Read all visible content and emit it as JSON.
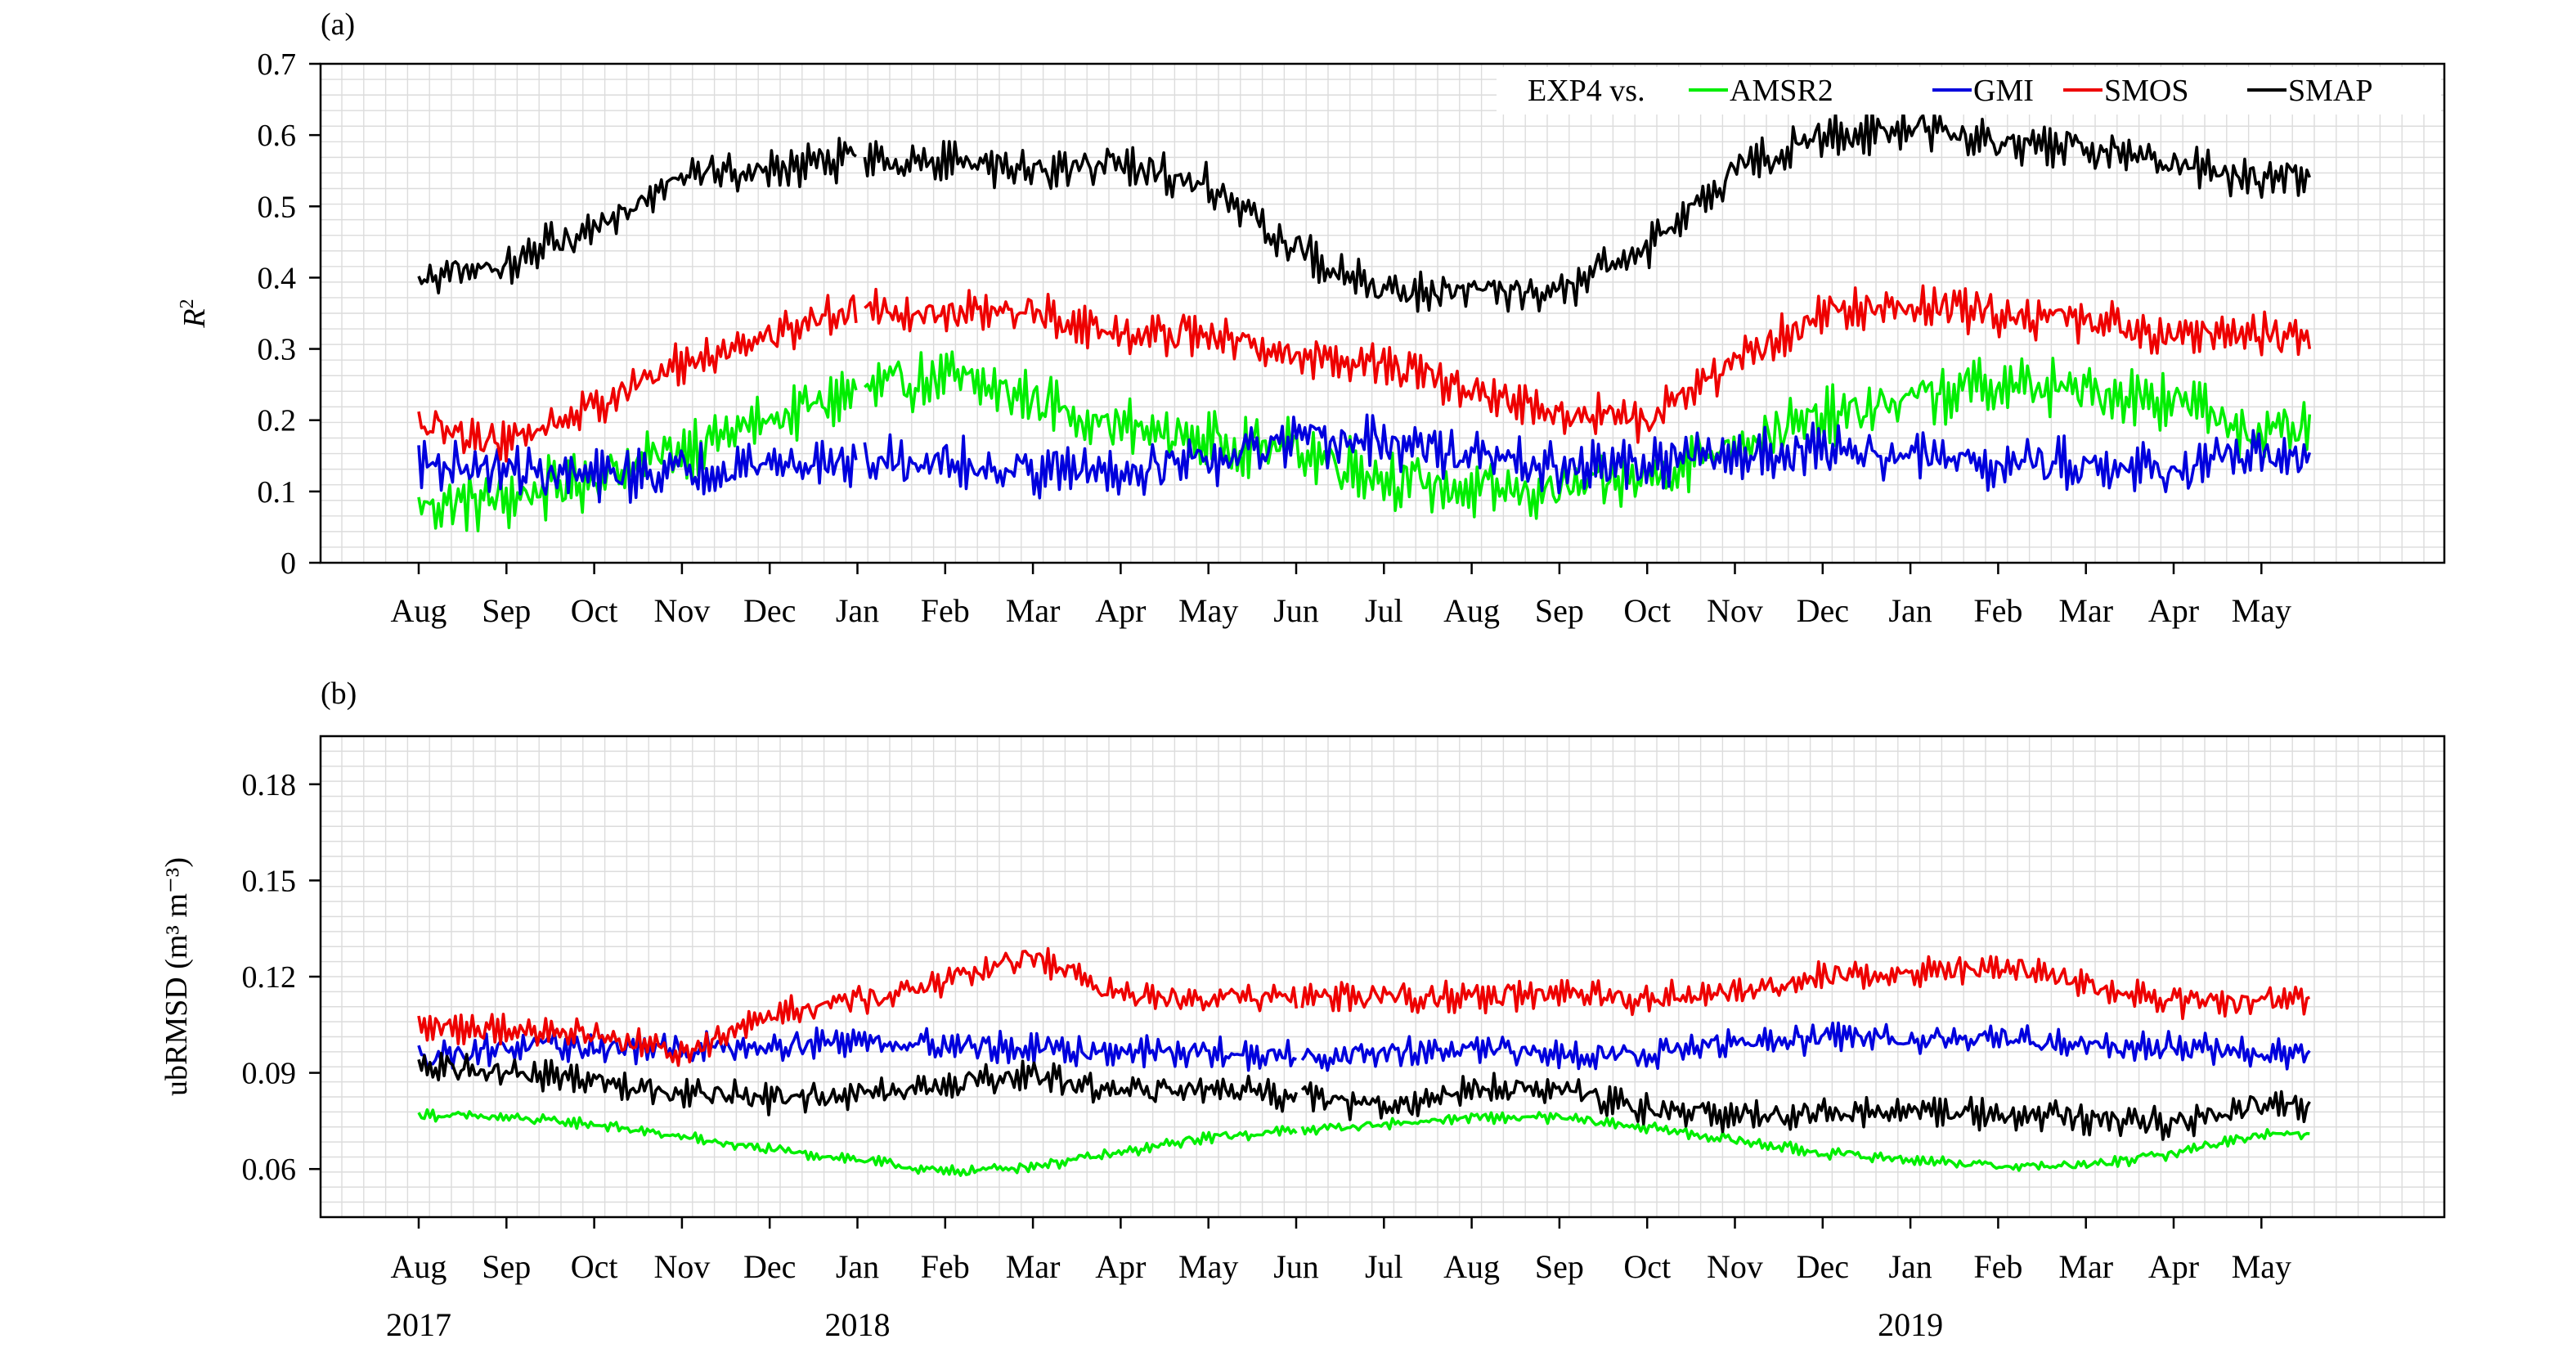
{
  "figure": {
    "x_months": [
      "Aug",
      "Sep",
      "Oct",
      "Nov",
      "Dec",
      "Jan",
      "Feb",
      "Mar",
      "Apr",
      "May",
      "Jun",
      "Jul",
      "Aug",
      "Sep",
      "Oct",
      "Nov",
      "Dec",
      "Jan",
      "Feb",
      "Mar",
      "Apr",
      "May"
    ],
    "year_labels": [
      {
        "label": "2017",
        "month_index": 0
      },
      {
        "label": "2018",
        "month_index": 5
      },
      {
        "label": "2019",
        "month_index": 17
      }
    ],
    "legend_prefix": "EXP4 vs.",
    "colors": {
      "AMSR2": "#00ee00",
      "GMI": "#0000dd",
      "SMOS": "#ee0000",
      "SMAP": "#000000",
      "grid": "#dcdcdc"
    }
  },
  "chart_data": [
    {
      "panel": "(a)",
      "type": "line",
      "ylabel": "R",
      "ylabel_sup": "2",
      "ylim": [
        0,
        0.7
      ],
      "yticks": [
        "0",
        "0.1",
        "0.2",
        "0.3",
        "0.4",
        "0.5",
        "0.6",
        "0.7"
      ],
      "ytick_values": [
        0,
        0.1,
        0.2,
        0.3,
        0.4,
        0.5,
        0.6,
        0.7
      ],
      "grid": true,
      "legend_position": "top-right",
      "gaps": [
        [
          5.0,
          5.08
        ],
        [
          7.72,
          7.75
        ],
        [
          9.72,
          9.74
        ],
        [
          14.45,
          14.47
        ]
      ],
      "series": [
        {
          "name": "AMSR2",
          "amplitude": 0.035,
          "x": [
            0,
            1,
            2,
            3,
            4,
            5,
            6,
            7,
            8,
            9,
            10,
            11,
            12,
            13,
            14,
            15,
            16,
            17,
            18,
            19,
            20,
            21
          ],
          "values": [
            0.08,
            0.09,
            0.12,
            0.16,
            0.2,
            0.24,
            0.26,
            0.23,
            0.19,
            0.17,
            0.16,
            0.12,
            0.1,
            0.1,
            0.12,
            0.17,
            0.2,
            0.23,
            0.25,
            0.24,
            0.23,
            0.18
          ]
        },
        {
          "name": "GMI",
          "amplitude": 0.03,
          "x": [
            0,
            1,
            2,
            3,
            4,
            5,
            6,
            7,
            8,
            9,
            10,
            11,
            12,
            13,
            14,
            15,
            16,
            17,
            18,
            19,
            20,
            21
          ],
          "values": [
            0.14,
            0.13,
            0.12,
            0.13,
            0.14,
            0.14,
            0.14,
            0.13,
            0.13,
            0.14,
            0.17,
            0.17,
            0.15,
            0.13,
            0.14,
            0.15,
            0.16,
            0.15,
            0.14,
            0.14,
            0.13,
            0.15
          ]
        },
        {
          "name": "SMOS",
          "amplitude": 0.025,
          "x": [
            0,
            1,
            2,
            3,
            4,
            5,
            6,
            7,
            8,
            9,
            10,
            11,
            12,
            13,
            14,
            15,
            16,
            17,
            18,
            19,
            20,
            21
          ],
          "values": [
            0.19,
            0.17,
            0.22,
            0.28,
            0.32,
            0.36,
            0.35,
            0.35,
            0.32,
            0.32,
            0.29,
            0.28,
            0.24,
            0.21,
            0.2,
            0.28,
            0.35,
            0.36,
            0.35,
            0.34,
            0.32,
            0.32
          ]
        },
        {
          "name": "SMAP",
          "amplitude": 0.025,
          "x": [
            0,
            1,
            2,
            3,
            4,
            5,
            6,
            7,
            8,
            9,
            10,
            11,
            12,
            13,
            14,
            15,
            16,
            17,
            18,
            19,
            20,
            21
          ],
          "values": [
            0.39,
            0.42,
            0.47,
            0.55,
            0.55,
            0.57,
            0.56,
            0.55,
            0.56,
            0.53,
            0.44,
            0.38,
            0.38,
            0.38,
            0.44,
            0.55,
            0.6,
            0.61,
            0.59,
            0.58,
            0.56,
            0.54
          ]
        }
      ]
    },
    {
      "panel": "(b)",
      "type": "line",
      "ylabel": "ubRMSD (m³ m⁻³)",
      "ylim": [
        0.045,
        0.195
      ],
      "yticks": [
        "0.06",
        "0.09",
        "0.12",
        "0.15",
        "0.18"
      ],
      "ytick_values": [
        0.06,
        0.09,
        0.12,
        0.15,
        0.18
      ],
      "grid": true,
      "gaps": [
        [
          7.72,
          7.75
        ],
        [
          10.02,
          10.05
        ],
        [
          14.45,
          14.47
        ]
      ],
      "series": [
        {
          "name": "AMSR2",
          "amplitude": 0.0015,
          "x": [
            0,
            1,
            2,
            3,
            4,
            5,
            6,
            7,
            8,
            9,
            10,
            11,
            12,
            13,
            14,
            15,
            16,
            17,
            18,
            19,
            20,
            21
          ],
          "values": [
            0.077,
            0.076,
            0.074,
            0.07,
            0.066,
            0.063,
            0.059,
            0.061,
            0.065,
            0.07,
            0.072,
            0.074,
            0.076,
            0.076,
            0.073,
            0.069,
            0.065,
            0.063,
            0.061,
            0.061,
            0.065,
            0.071
          ]
        },
        {
          "name": "GMI",
          "amplitude": 0.004,
          "x": [
            0,
            1,
            2,
            3,
            4,
            5,
            6,
            7,
            8,
            9,
            10,
            11,
            12,
            13,
            14,
            15,
            16,
            17,
            18,
            19,
            20,
            21
          ],
          "values": [
            0.095,
            0.098,
            0.098,
            0.097,
            0.099,
            0.1,
            0.099,
            0.097,
            0.097,
            0.096,
            0.095,
            0.096,
            0.097,
            0.096,
            0.096,
            0.099,
            0.101,
            0.101,
            0.101,
            0.099,
            0.098,
            0.096
          ]
        },
        {
          "name": "SMOS",
          "amplitude": 0.004,
          "x": [
            0,
            1,
            2,
            3,
            4,
            5,
            6,
            7,
            8,
            9,
            10,
            11,
            12,
            13,
            14,
            15,
            16,
            17,
            18,
            19,
            20,
            21
          ],
          "values": [
            0.104,
            0.104,
            0.102,
            0.096,
            0.109,
            0.113,
            0.118,
            0.127,
            0.114,
            0.114,
            0.114,
            0.114,
            0.114,
            0.114,
            0.113,
            0.115,
            0.12,
            0.121,
            0.123,
            0.118,
            0.112,
            0.113
          ]
        },
        {
          "name": "SMAP",
          "amplitude": 0.004,
          "x": [
            0,
            1,
            2,
            3,
            4,
            5,
            6,
            7,
            8,
            9,
            10,
            11,
            12,
            13,
            14,
            15,
            16,
            17,
            18,
            19,
            20,
            21
          ],
          "values": [
            0.092,
            0.09,
            0.088,
            0.084,
            0.082,
            0.083,
            0.086,
            0.089,
            0.084,
            0.085,
            0.083,
            0.079,
            0.085,
            0.085,
            0.079,
            0.076,
            0.077,
            0.078,
            0.077,
            0.076,
            0.074,
            0.08
          ]
        }
      ]
    }
  ]
}
